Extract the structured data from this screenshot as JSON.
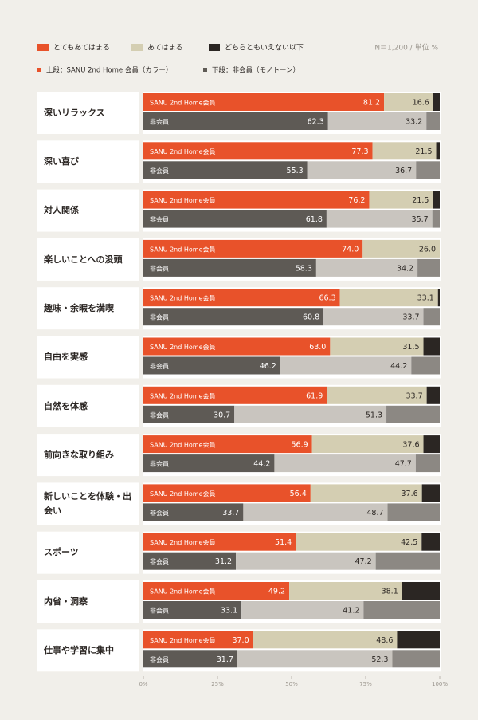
{
  "chart_data": {
    "type": "grouped_stacked_barh",
    "legend_note": "N＝1,200 / 単位 %",
    "key_top": "上段：SANU 2nd Home 会員（カラー）",
    "key_bottom": "下段：非会員（モノトーン）",
    "categories": [
      "深いリラックス",
      "深い喜び",
      "対人関係",
      "楽しいことへの没頭",
      "趣味・余暇を満喫",
      "自由を実感",
      "自然を体感",
      "前向きな取り組み",
      "新しいことを体験・出会い",
      "スポーツ",
      "内省・洞察",
      "仕事や学習に集中"
    ],
    "xlim": [
      0,
      100
    ],
    "xticks": [
      {
        "value": 0,
        "label": "0%"
      },
      {
        "value": 25,
        "label": "25%"
      },
      {
        "value": 50,
        "label": "50%"
      },
      {
        "value": 75,
        "label": "75%"
      },
      {
        "value": 100,
        "label": "100%"
      }
    ],
    "groups": [
      {
        "name": "SANU 2nd Home会員",
        "series": [
          {
            "name": "とてもあてはまる",
            "color": "#e8522a",
            "values": [
              81.2,
              77.3,
              76.2,
              74.0,
              66.3,
              63.0,
              61.9,
              56.9,
              56.4,
              51.4,
              49.2,
              37.0
            ],
            "value_labels": [
              "81.2",
              "77.3",
              "76.2",
              "74.0",
              "66.3",
              "63.0",
              "61.9",
              "56.9",
              "56.4",
              "51.4",
              "49.2",
              "37.0"
            ]
          },
          {
            "name": "あてはまる",
            "color": "#d4ceb2",
            "values": [
              16.6,
              21.5,
              21.5,
              26.0,
              33.1,
              31.5,
              33.7,
              37.6,
              37.6,
              42.5,
              38.1,
              48.6
            ],
            "value_labels": [
              "16.6",
              "21.5",
              "21.5",
              "26.0",
              "33.1",
              "31.5",
              "33.7",
              "37.6",
              "37.6",
              "42.5",
              "38.1",
              "48.6"
            ]
          },
          {
            "name": "どちらともいえない以下",
            "color": "#2b2623",
            "values": [
              2.2,
              1.2,
              2.3,
              0,
              0.6,
              5.5,
              4.4,
              5.5,
              6.0,
              6.1,
              12.7,
              14.4
            ]
          }
        ]
      },
      {
        "name": "非会員",
        "series": [
          {
            "color": "#5e5a55",
            "values": [
              62.3,
              55.3,
              61.8,
              58.3,
              60.8,
              46.2,
              30.7,
              44.2,
              33.7,
              31.2,
              33.1,
              31.7
            ]
          },
          {
            "color": "#c9c5bf",
            "values": [
              33.2,
              36.7,
              35.7,
              34.2,
              33.7,
              44.2,
              51.3,
              47.7,
              48.7,
              47.2,
              41.2,
              52.3
            ]
          },
          {
            "color": "#8c8883",
            "values": [
              4.5,
              8.0,
              2.5,
              7.5,
              5.5,
              9.6,
              18.0,
              8.1,
              17.6,
              21.6,
              25.7,
              16.0
            ]
          }
        ]
      }
    ]
  }
}
